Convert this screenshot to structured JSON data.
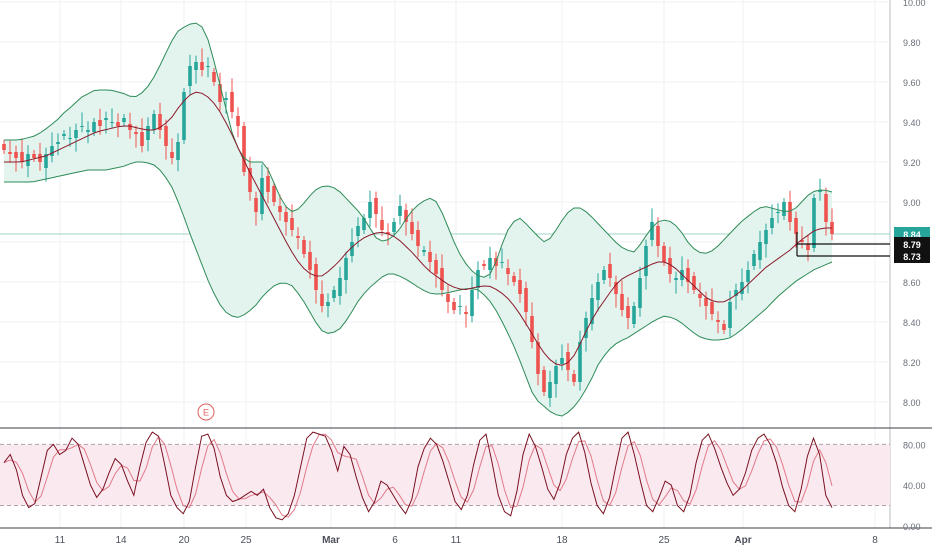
{
  "chart_data": {
    "type": "candlestick",
    "x_labels": [
      "11",
      "14",
      "20",
      "25",
      "Mar",
      "6",
      "11",
      "18",
      "25",
      "Apr",
      "8"
    ],
    "price_panel": {
      "y_ticks": [
        "10.00",
        "9.80",
        "9.60",
        "9.40",
        "9.20",
        "9.00",
        "8.80",
        "8.60",
        "8.40",
        "8.20",
        "8.00"
      ],
      "ylim": [
        7.87,
        10.0
      ],
      "price_labels": [
        {
          "text": "8.84",
          "value": 8.84,
          "style": "last"
        },
        {
          "text": "8.79",
          "value": 8.79,
          "style": "marker"
        },
        {
          "text": "8.73",
          "value": 8.73,
          "style": "marker"
        }
      ],
      "event_marker": "E",
      "indicator_series": [
        {
          "name": "",
          "kind": "bollinger-upper",
          "color": "#2e8b57"
        },
        {
          "name": "",
          "kind": "bollinger-basis",
          "color": "#8b1a2a"
        },
        {
          "name": "",
          "kind": "bollinger-lower",
          "color": "#2e8b57"
        }
      ],
      "closes": [
        9.26,
        9.24,
        9.22,
        9.2,
        9.24,
        9.22,
        9.2,
        9.24,
        9.28,
        9.3,
        9.34,
        9.32,
        9.36,
        9.38,
        9.36,
        9.4,
        9.38,
        9.42,
        9.4,
        9.38,
        9.42,
        9.36,
        9.34,
        9.28,
        9.38,
        9.44,
        9.36,
        9.28,
        9.22,
        9.3,
        9.55,
        9.68,
        9.7,
        9.66,
        9.68,
        9.6,
        9.5,
        9.52,
        9.45,
        9.38,
        9.15,
        9.05,
        8.95,
        9.12,
        9.05,
        9.0,
        8.95,
        8.9,
        8.86,
        8.82,
        8.74,
        8.66,
        8.56,
        8.48,
        8.5,
        8.56,
        8.62,
        8.72,
        8.8,
        8.88,
        8.92,
        9.0,
        8.94,
        8.86,
        8.84,
        8.9,
        8.98,
        8.9,
        8.84,
        8.78,
        8.76,
        8.7,
        8.64,
        8.56,
        8.5,
        8.46,
        8.48,
        8.44,
        8.56,
        8.66,
        8.68,
        8.72,
        8.68,
        8.7,
        8.64,
        8.6,
        8.54,
        8.45,
        8.3,
        8.14,
        8.05,
        8.1,
        8.18,
        8.22,
        8.16,
        8.1,
        8.3,
        8.42,
        8.52,
        8.6,
        8.66,
        8.62,
        8.54,
        8.46,
        8.42,
        8.48,
        8.62,
        8.78,
        8.9,
        8.78,
        8.7,
        8.64,
        8.62,
        8.66,
        8.6,
        8.56,
        8.52,
        8.48,
        8.44,
        8.4,
        8.36,
        8.5,
        8.56,
        8.6,
        8.66,
        8.74,
        8.8,
        8.86,
        8.92,
        8.95,
        9.0,
        8.9,
        8.84,
        8.8,
        8.76,
        9.02,
        9.06,
        8.9,
        8.84
      ],
      "upper_band": [
        9.31,
        9.31,
        9.31,
        9.32,
        9.33,
        9.35,
        9.38,
        9.41,
        9.45,
        9.48,
        9.52,
        9.54,
        9.56,
        9.56,
        9.56,
        9.55,
        9.54,
        9.52,
        9.54,
        9.58,
        9.64,
        9.72,
        9.8,
        9.86,
        9.88,
        9.9,
        9.88,
        9.8,
        9.65,
        9.5,
        9.35,
        9.25,
        9.2,
        9.2,
        9.2,
        9.15,
        9.05,
        8.98,
        8.95,
        8.97,
        9.02,
        9.06,
        9.08,
        9.08,
        9.06,
        9.02,
        8.98,
        8.94,
        8.88,
        8.82,
        8.8,
        8.82,
        8.86,
        8.92,
        8.97,
        9.0,
        9.02,
        9.0,
        8.92,
        8.82,
        8.74,
        8.68,
        8.64,
        8.62,
        8.64,
        8.72,
        8.84,
        8.9,
        8.92,
        8.88,
        8.84,
        8.8,
        8.82,
        8.88,
        8.94,
        8.97,
        8.97,
        8.94,
        8.9,
        8.86,
        8.82,
        8.78,
        8.76,
        8.75,
        8.8,
        8.86,
        8.9,
        8.91,
        8.9,
        8.86,
        8.8,
        8.76,
        8.74,
        8.75,
        8.78,
        8.82,
        8.86,
        8.9,
        8.93,
        8.96,
        8.98,
        8.97,
        8.96,
        8.95,
        8.96,
        9.0,
        9.04,
        9.06,
        9.06,
        9.05
      ],
      "basis": [
        9.2,
        9.2,
        9.2,
        9.21,
        9.22,
        9.23,
        9.25,
        9.27,
        9.29,
        9.31,
        9.33,
        9.35,
        9.36,
        9.37,
        9.38,
        9.38,
        9.37,
        9.36,
        9.36,
        9.38,
        9.42,
        9.48,
        9.53,
        9.55,
        9.54,
        9.5,
        9.44,
        9.36,
        9.27,
        9.18,
        9.1,
        9.02,
        8.94,
        8.86,
        8.78,
        8.71,
        8.66,
        8.63,
        8.63,
        8.66,
        8.7,
        8.75,
        8.79,
        8.82,
        8.84,
        8.85,
        8.84,
        8.82,
        8.78,
        8.74,
        8.69,
        8.65,
        8.62,
        8.59,
        8.57,
        8.56,
        8.57,
        8.58,
        8.58,
        8.56,
        8.53,
        8.48,
        8.42,
        8.35,
        8.28,
        8.22,
        8.19,
        8.18,
        8.22,
        8.3,
        8.39,
        8.46,
        8.52,
        8.58,
        8.62,
        8.64,
        8.66,
        8.68,
        8.7,
        8.7,
        8.68,
        8.64,
        8.6,
        8.56,
        8.52,
        8.5,
        8.5,
        8.52,
        8.55,
        8.59,
        8.63,
        8.67,
        8.7,
        8.73,
        8.76,
        8.8,
        8.83,
        8.86,
        8.87,
        8.87
      ],
      "lower_band": [
        9.1,
        9.1,
        9.1,
        9.1,
        9.11,
        9.12,
        9.13,
        9.14,
        9.15,
        9.16,
        9.16,
        9.16,
        9.17,
        9.18,
        9.2,
        9.2,
        9.19,
        9.15,
        9.08,
        8.97,
        8.84,
        8.72,
        8.6,
        8.5,
        8.44,
        8.42,
        8.44,
        8.48,
        8.54,
        8.58,
        8.6,
        8.58,
        8.52,
        8.44,
        8.36,
        8.34,
        8.36,
        8.42,
        8.5,
        8.56,
        8.6,
        8.64,
        8.64,
        8.62,
        8.59,
        8.56,
        8.54,
        8.54,
        8.55,
        8.56,
        8.57,
        8.56,
        8.52,
        8.45,
        8.36,
        8.26,
        8.14,
        8.02,
        7.98,
        7.94,
        7.93,
        7.96,
        8.02,
        8.1,
        8.2,
        8.26,
        8.3,
        8.32,
        8.35,
        8.38,
        8.41,
        8.43,
        8.42,
        8.39,
        8.35,
        8.32,
        8.31,
        8.31,
        8.32,
        8.35,
        8.39,
        8.43,
        8.47,
        8.52,
        8.56,
        8.6,
        8.63,
        8.66,
        8.68,
        8.7
      ]
    },
    "oscillator_panel": {
      "y_ticks": [
        "80.00",
        "40.00",
        "0.00"
      ],
      "ylim": [
        -2,
        96
      ],
      "band": [
        20,
        80
      ],
      "series": [
        {
          "name": "",
          "kind": "%K",
          "color": "#7a1020"
        },
        {
          "name": "",
          "kind": "%D",
          "color": "#e07a88"
        }
      ],
      "k_values": [
        62,
        70,
        55,
        30,
        18,
        22,
        48,
        74,
        80,
        70,
        74,
        86,
        80,
        60,
        40,
        28,
        36,
        52,
        66,
        60,
        44,
        30,
        58,
        82,
        92,
        88,
        60,
        30,
        18,
        12,
        24,
        58,
        88,
        90,
        76,
        48,
        30,
        24,
        26,
        30,
        34,
        30,
        36,
        18,
        8,
        6,
        12,
        30,
        58,
        86,
        92,
        90,
        88,
        74,
        54,
        78,
        70,
        48,
        28,
        14,
        24,
        44,
        40,
        30,
        20,
        12,
        26,
        58,
        76,
        86,
        80,
        64,
        44,
        24,
        16,
        30,
        60,
        84,
        90,
        62,
        30,
        14,
        10,
        34,
        70,
        90,
        78,
        58,
        36,
        26,
        42,
        70,
        86,
        92,
        72,
        42,
        20,
        12,
        28,
        58,
        86,
        92,
        70,
        44,
        20,
        14,
        28,
        44,
        40,
        20,
        14,
        30,
        62,
        84,
        90,
        76,
        58,
        42,
        30,
        36,
        52,
        74,
        86,
        90,
        80,
        62,
        38,
        20,
        14,
        36,
        68,
        86,
        70,
        30,
        18
      ]
    }
  },
  "colors": {
    "up_candle": "#26a69a",
    "down_candle": "#ef5350",
    "band_fill": "#e3f4ef",
    "osc_band_fill": "#fbe9f0",
    "last_price_bg": "#26a69a"
  }
}
